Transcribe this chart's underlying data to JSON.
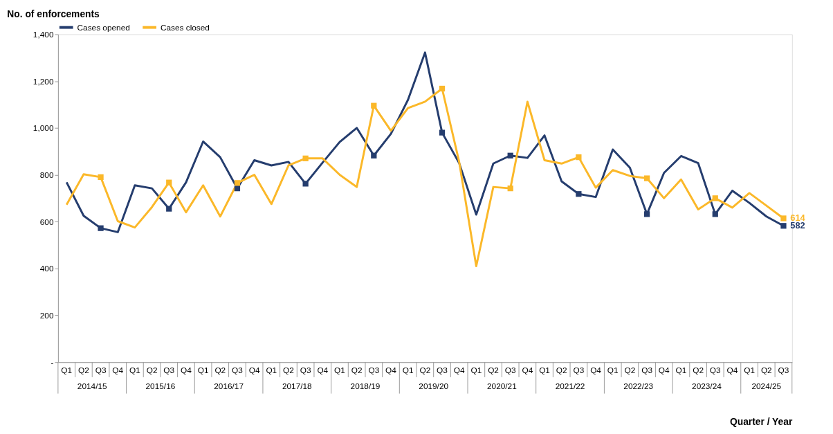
{
  "chart_data": {
    "type": "line",
    "xlabel": "Quarter / Year",
    "ylabel": "No. of enforcements",
    "categories": [
      "Q1",
      "Q2",
      "Q3",
      "Q4",
      "Q1",
      "Q2",
      "Q3",
      "Q4",
      "Q1",
      "Q2",
      "Q3",
      "Q4",
      "Q1",
      "Q2",
      "Q3",
      "Q4",
      "Q1",
      "Q2",
      "Q3",
      "Q4",
      "Q1",
      "Q2",
      "Q3",
      "Q4",
      "Q1",
      "Q2",
      "Q3",
      "Q4",
      "Q1",
      "Q2",
      "Q3",
      "Q4",
      "Q1",
      "Q2",
      "Q3",
      "Q4",
      "Q1",
      "Q2",
      "Q3",
      "Q4",
      "Q1",
      "Q2",
      "Q3"
    ],
    "annotations": [
      "2014/15",
      "2015/16",
      "2016/17",
      "2017/18",
      "2018/19",
      "2019/20",
      "2020/21",
      "2021/22",
      "2022/23",
      "2023/24",
      "2024/25"
    ],
    "series": [
      {
        "name": "Cases opened",
        "color": "#253d6e",
        "values": [
          768,
          625,
          572,
          555,
          755,
          742,
          655,
          768,
          942,
          875,
          742,
          862,
          840,
          855,
          762,
          852,
          940,
          1000,
          882,
          975,
          1120,
          1322,
          980,
          850,
          630,
          848,
          882,
          872,
          968,
          772,
          718,
          705,
          908,
          830,
          632,
          808,
          880,
          850,
          632,
          732,
          680,
          622,
          582
        ],
        "value_labels": [
          null,
          null,
          null,
          null,
          null,
          null,
          null,
          null,
          null,
          null,
          null,
          null,
          null,
          null,
          null,
          null,
          null,
          null,
          null,
          null,
          null,
          null,
          null,
          null,
          null,
          null,
          null,
          null,
          null,
          null,
          null,
          null,
          null,
          null,
          null,
          null,
          null,
          null,
          null,
          null,
          null,
          null,
          "582"
        ]
      },
      {
        "name": "Cases closed",
        "color": "#fbb829",
        "values": [
          672,
          802,
          790,
          602,
          575,
          662,
          767,
          640,
          755,
          622,
          765,
          800,
          675,
          840,
          870,
          870,
          800,
          748,
          1095,
          988,
          1085,
          1112,
          1168,
          855,
          410,
          748,
          742,
          1112,
          862,
          848,
          875,
          745,
          820,
          795,
          785,
          700,
          780,
          652,
          700,
          660,
          722,
          668,
          614
        ],
        "value_labels": [
          null,
          null,
          null,
          null,
          null,
          null,
          null,
          null,
          null,
          null,
          null,
          null,
          null,
          null,
          null,
          null,
          null,
          null,
          null,
          null,
          null,
          null,
          null,
          null,
          null,
          null,
          null,
          null,
          null,
          null,
          null,
          null,
          null,
          null,
          null,
          null,
          null,
          null,
          null,
          null,
          null,
          null,
          "614"
        ]
      },
      {
        "type": "scatter",
        "marker": "square",
        "color": "#253d6e",
        "values": [
          null,
          null,
          572,
          null,
          null,
          null,
          655,
          null,
          null,
          null,
          742,
          null,
          null,
          null,
          762,
          null,
          null,
          null,
          882,
          null,
          null,
          null,
          980,
          null,
          null,
          null,
          882,
          null,
          null,
          null,
          718,
          null,
          null,
          null,
          632,
          null,
          null,
          null,
          632,
          null,
          null,
          null,
          582
        ]
      },
      {
        "type": "scatter",
        "marker": "square",
        "color": "#fbb829",
        "values": [
          null,
          null,
          790,
          null,
          null,
          null,
          767,
          null,
          null,
          null,
          765,
          null,
          null,
          null,
          870,
          null,
          null,
          null,
          1095,
          null,
          null,
          null,
          1168,
          null,
          null,
          null,
          742,
          null,
          null,
          null,
          875,
          null,
          null,
          null,
          785,
          null,
          null,
          null,
          700,
          null,
          null,
          null,
          614
        ]
      }
    ],
    "ylim": [
      0,
      1400
    ],
    "yticks": [
      {
        "value": 0,
        "label": "-"
      },
      {
        "value": 200,
        "label": "200"
      },
      {
        "value": 400,
        "label": "400"
      },
      {
        "value": 600,
        "label": "600"
      },
      {
        "value": 800,
        "label": "800"
      },
      {
        "value": 1000,
        "label": "1,000"
      },
      {
        "value": 1200,
        "label": "1,200"
      },
      {
        "value": 1400,
        "label": "1,400"
      }
    ],
    "grid": false,
    "legend": "top",
    "line_style": "solid"
  }
}
